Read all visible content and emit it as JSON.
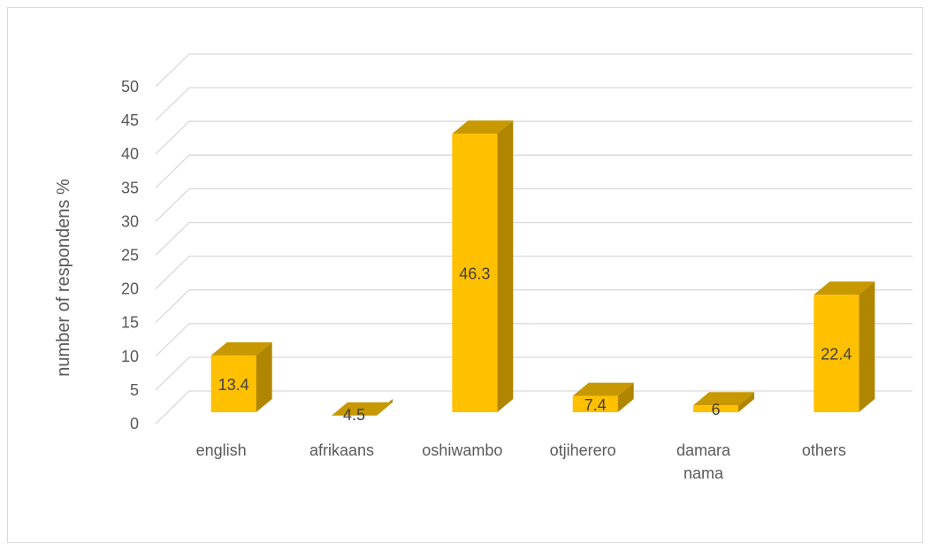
{
  "chart_data": {
    "type": "bar",
    "style": "3d-column",
    "categories": [
      [
        "english"
      ],
      [
        "afrikaans"
      ],
      [
        "oshiwambo"
      ],
      [
        "otjiherero"
      ],
      [
        "damara",
        "nama"
      ],
      [
        "others"
      ]
    ],
    "values": [
      13.4,
      4.5,
      46.3,
      7.4,
      6,
      22.4
    ],
    "data_labels": [
      "13.4",
      "4.5",
      "46.3",
      "7.4",
      "6",
      "22.4"
    ],
    "ylabel": "number of respondens %",
    "xlabel": "",
    "title": "",
    "ylim": [
      0,
      50
    ],
    "yticks": [
      0,
      5,
      10,
      15,
      20,
      25,
      30,
      35,
      40,
      45,
      50
    ],
    "grid": true,
    "legend": "none",
    "colors": {
      "front": "#ffc000",
      "side": "#b08500",
      "top": "#c79800",
      "grid": "#d9d9d9"
    }
  }
}
